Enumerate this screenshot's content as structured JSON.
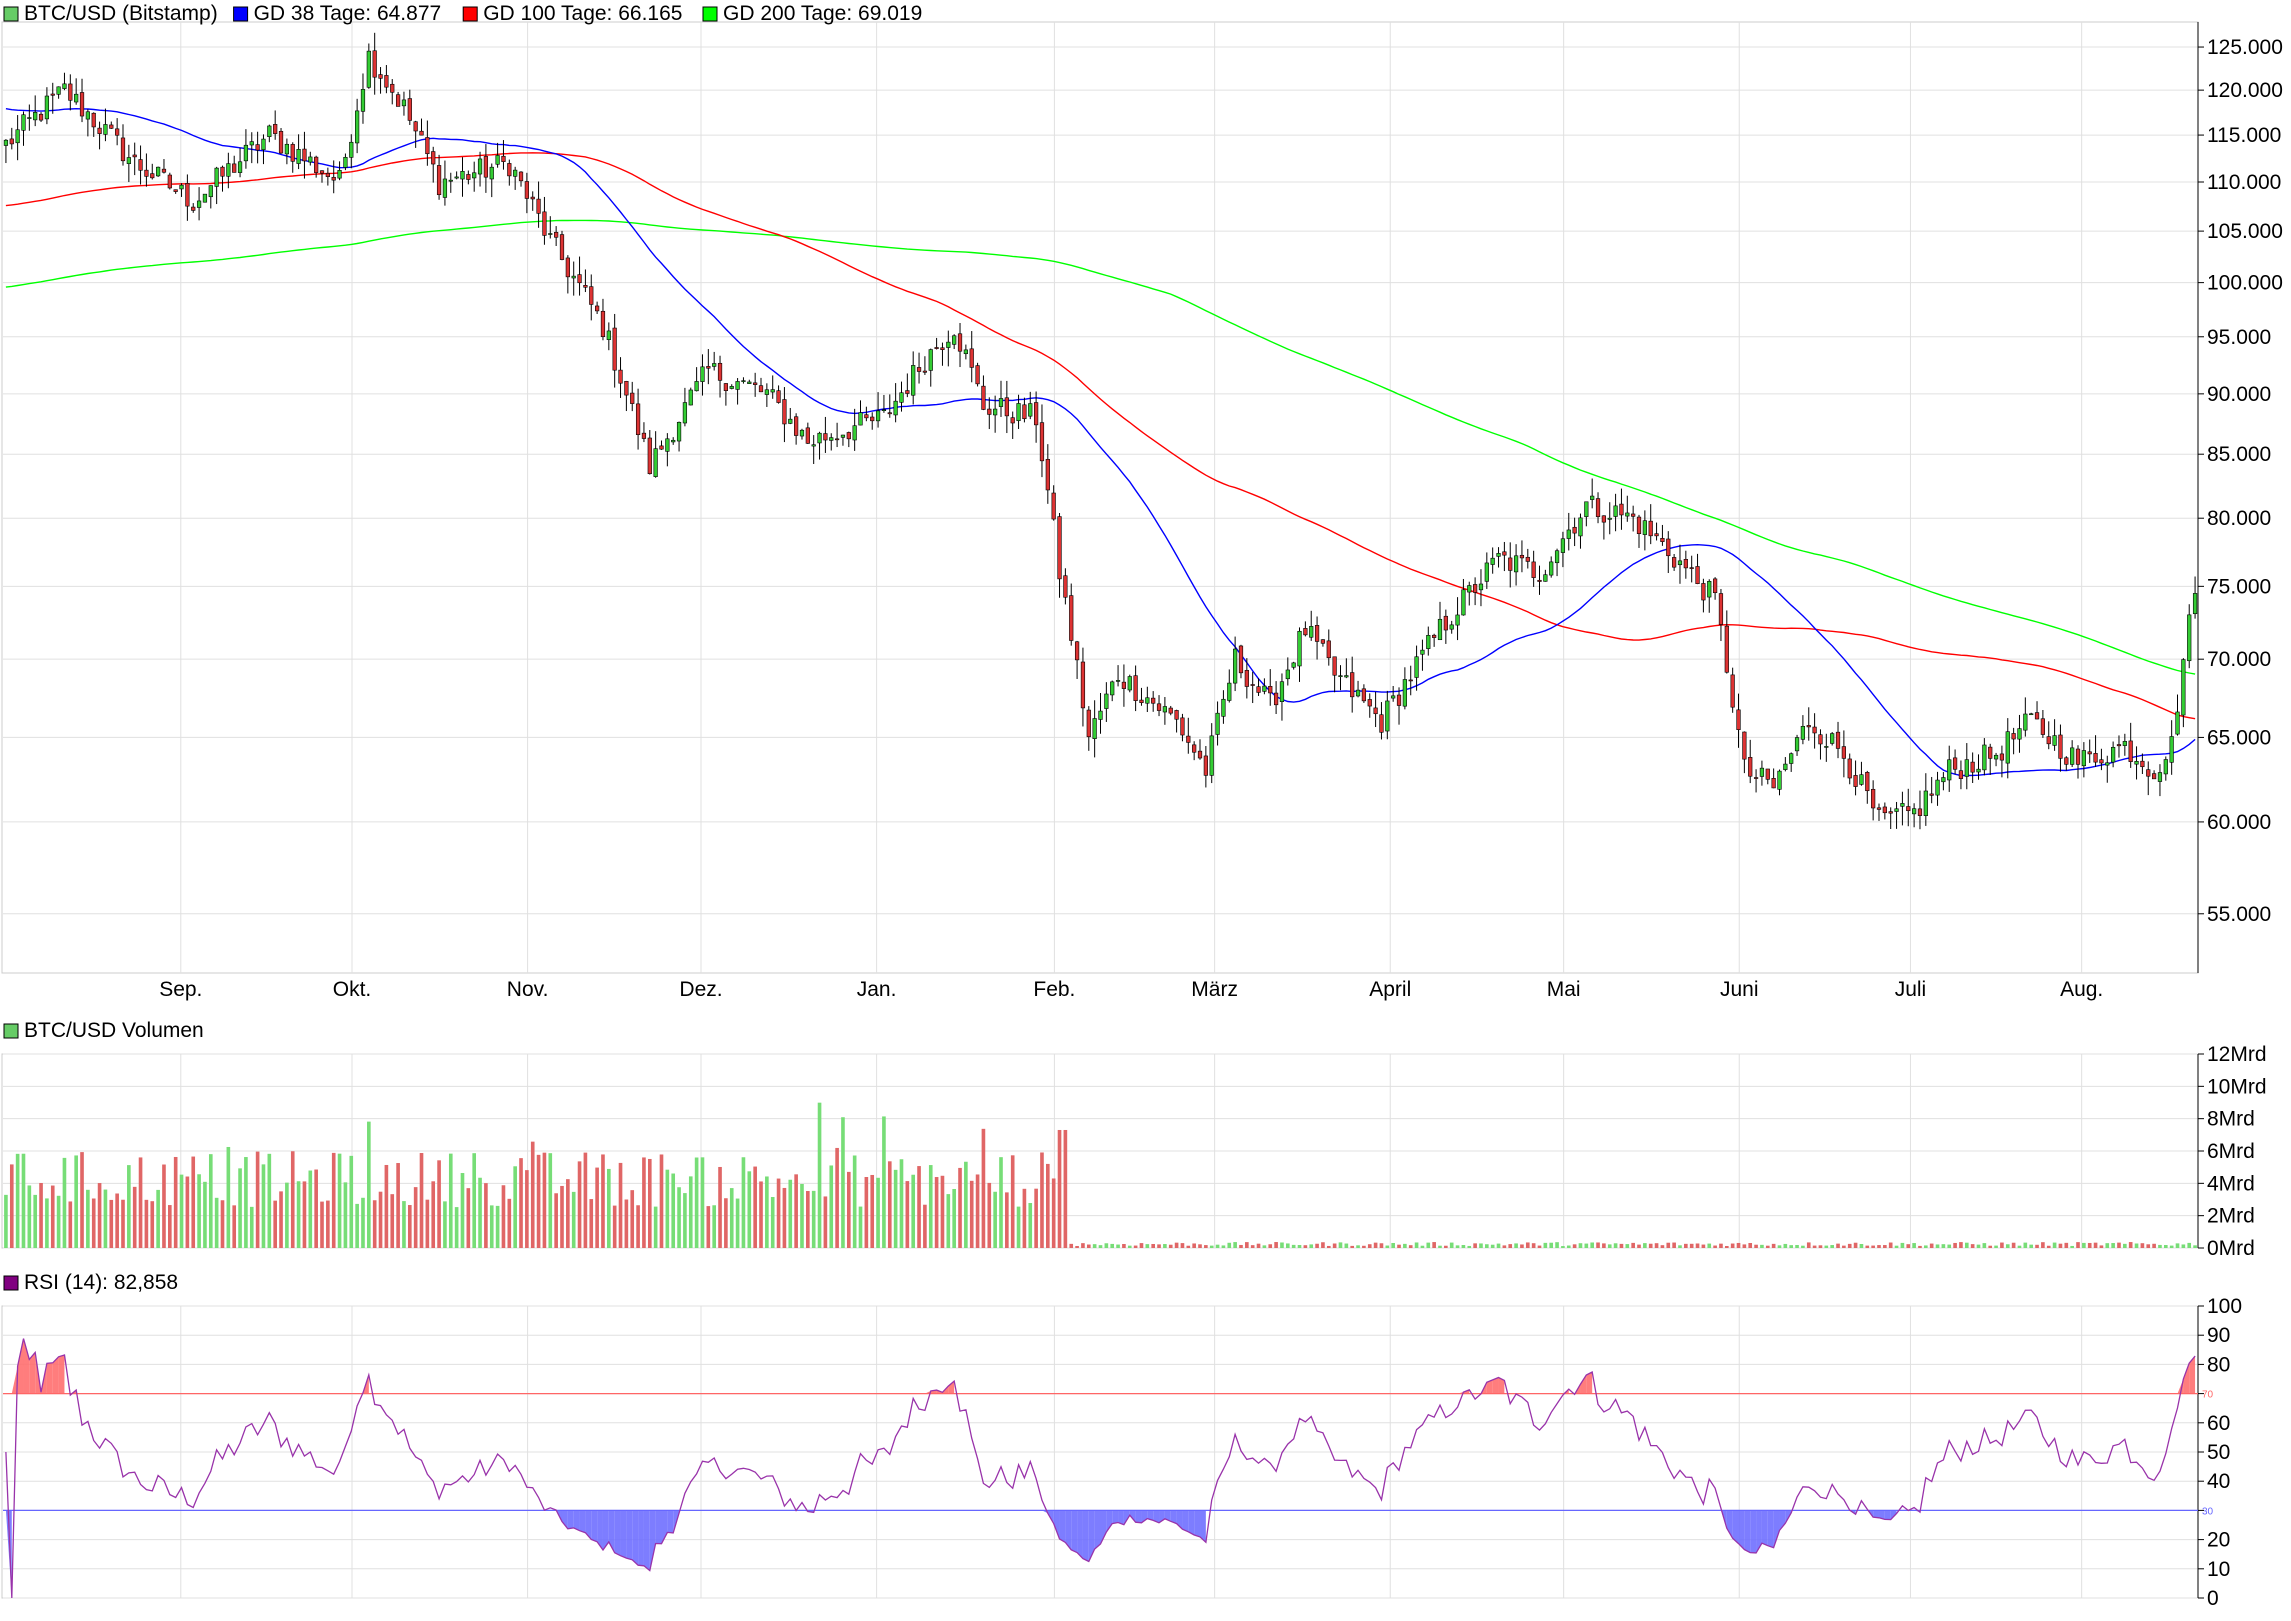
{
  "chart_data": {
    "type": "candlestick",
    "price_panel": {
      "legend": [
        {
          "label": "BTC/USD (Bitstamp)",
          "color": "#66cc66"
        },
        {
          "label": "GD 38 Tage: 64.877",
          "color": "#0000ff"
        },
        {
          "label": "GD 100 Tage: 66.165",
          "color": "#ff0000"
        },
        {
          "label": "GD 200 Tage: 69.019",
          "color": "#00ff00"
        }
      ],
      "y_scale": "log",
      "ylim": [
        52000,
        128000
      ],
      "y_ticks": [
        {
          "value": 55000,
          "label": "55.000"
        },
        {
          "value": 60000,
          "label": "60.000"
        },
        {
          "value": 65000,
          "label": "65.000"
        },
        {
          "value": 70000,
          "label": "70.000"
        },
        {
          "value": 75000,
          "label": "75.000"
        },
        {
          "value": 80000,
          "label": "80.000"
        },
        {
          "value": 85000,
          "label": "85.000"
        },
        {
          "value": 90000,
          "label": "90.000"
        },
        {
          "value": 95000,
          "label": "95.000"
        },
        {
          "value": 100000,
          "label": "100.000"
        },
        {
          "value": 105000,
          "label": "105.000"
        },
        {
          "value": 110000,
          "label": "110.000"
        },
        {
          "value": 115000,
          "label": "115.000"
        },
        {
          "value": 120000,
          "label": "120.000"
        },
        {
          "value": 125000,
          "label": "125.000"
        }
      ],
      "x_ticks": [
        "Sep.",
        "Okt.",
        "Nov.",
        "Dez.",
        "Jan.",
        "Feb.",
        "März",
        "April",
        "Mai",
        "Juni",
        "Juli",
        "Aug."
      ],
      "key_points": [
        {
          "i": 0,
          "c": 114000
        },
        {
          "i": 10,
          "c": 120000
        },
        {
          "i": 22,
          "c": 112000
        },
        {
          "i": 32,
          "c": 108000
        },
        {
          "i": 45,
          "c": 115000
        },
        {
          "i": 57,
          "c": 110000
        },
        {
          "i": 62,
          "c": 124000
        },
        {
          "i": 68,
          "c": 118000
        },
        {
          "i": 74,
          "c": 110000
        },
        {
          "i": 86,
          "c": 112000
        },
        {
          "i": 93,
          "c": 104000
        },
        {
          "i": 102,
          "c": 96000
        },
        {
          "i": 110,
          "c": 84000
        },
        {
          "i": 120,
          "c": 92000
        },
        {
          "i": 130,
          "c": 90000
        },
        {
          "i": 137,
          "c": 86000
        },
        {
          "i": 150,
          "c": 88000
        },
        {
          "i": 157,
          "c": 93000
        },
        {
          "i": 162,
          "c": 96000
        },
        {
          "i": 167,
          "c": 89000
        },
        {
          "i": 176,
          "c": 88000
        },
        {
          "i": 180,
          "c": 76000
        },
        {
          "i": 185,
          "c": 65000
        },
        {
          "i": 190,
          "c": 69000
        },
        {
          "i": 200,
          "c": 66000
        },
        {
          "i": 205,
          "c": 63000
        },
        {
          "i": 210,
          "c": 70000
        },
        {
          "i": 216,
          "c": 67000
        },
        {
          "i": 222,
          "c": 72000
        },
        {
          "i": 227,
          "c": 69000
        },
        {
          "i": 235,
          "c": 66000
        },
        {
          "i": 245,
          "c": 72000
        },
        {
          "i": 255,
          "c": 77000
        },
        {
          "i": 262,
          "c": 76000
        },
        {
          "i": 270,
          "c": 81000
        },
        {
          "i": 278,
          "c": 80000
        },
        {
          "i": 283,
          "c": 78000
        },
        {
          "i": 292,
          "c": 74000
        },
        {
          "i": 297,
          "c": 63000
        },
        {
          "i": 302,
          "c": 62000
        },
        {
          "i": 308,
          "c": 66000
        },
        {
          "i": 314,
          "c": 64000
        },
        {
          "i": 320,
          "c": 60000
        },
        {
          "i": 326,
          "c": 60500
        },
        {
          "i": 332,
          "c": 63000
        },
        {
          "i": 340,
          "c": 64000
        },
        {
          "i": 346,
          "c": 66000
        },
        {
          "i": 354,
          "c": 63500
        },
        {
          "i": 362,
          "c": 64500
        },
        {
          "i": 367,
          "c": 63000
        },
        {
          "i": 370,
          "c": 64500
        },
        {
          "i": 372,
          "c": 70000
        },
        {
          "i": 374,
          "c": 74500
        }
      ],
      "candle_count": 375,
      "last_values": {
        "close": 74500,
        "gd38": 64877,
        "gd100": 66165,
        "gd200": 69019
      },
      "ma_ranges": {
        "gd38_start": 118000,
        "gd100_start": 107500,
        "gd200_start": 99500
      }
    },
    "volume_panel": {
      "legend": {
        "label": "BTC/USD Volumen",
        "color": "#66cc66"
      },
      "ylim": [
        0,
        12
      ],
      "y_ticks": [
        "0Mrd",
        "2Mrd",
        "4Mrd",
        "6Mrd",
        "8Mrd",
        "10Mrd",
        "12Mrd"
      ],
      "unit": "Mrd"
    },
    "rsi_panel": {
      "legend": {
        "label": "RSI (14): 82,858",
        "color": "#800080"
      },
      "ylim": [
        0,
        100
      ],
      "y_ticks": [
        "0",
        "10",
        "20",
        "30",
        "40",
        "50",
        "60",
        "70",
        "80",
        "90",
        "100"
      ],
      "levels": [
        {
          "value": 70,
          "label": "70",
          "color": "#ff6666"
        },
        {
          "value": 30,
          "label": "30",
          "color": "#6666ff"
        }
      ],
      "last": 82.858
    },
    "colors": {
      "up": "#33cc33",
      "down": "#dd3333",
      "grid": "#e0e0e0",
      "rsi": "#9933aa"
    }
  }
}
